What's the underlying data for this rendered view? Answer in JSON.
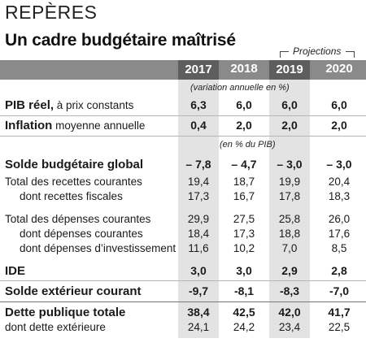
{
  "kicker": "REPÈRES",
  "title": "Un cadre budgétaire maîtrisé",
  "projections_label": "Projections",
  "years": [
    "2017",
    "2018",
    "2019",
    "2020"
  ],
  "unit_notes": {
    "variation": "(variation annuelle en %)",
    "pib_pct": "(en % du PIB)"
  },
  "rows": {
    "pib_reel": {
      "label_bold": "PIB réel,",
      "label_rest": " à prix constants",
      "values": [
        "6,3",
        "6,0",
        "6,0",
        "6,0"
      ]
    },
    "inflation": {
      "label_bold": "Inflation",
      "label_rest": " moyenne annuelle",
      "values": [
        "0,4",
        "2,0",
        "2,0",
        "2,0"
      ]
    },
    "solde_budgetaire": {
      "label_bold": "Solde budgétaire global",
      "label_rest": "",
      "values": [
        "– 7,8",
        "– 4,7",
        "– 3,0",
        "– 3,0"
      ]
    },
    "recettes": {
      "label": "Total des recettes courantes",
      "values": [
        "19,4",
        "18,7",
        "19,9",
        "20,4"
      ]
    },
    "recettes_fiscales": {
      "label": "dont recettes fiscales",
      "values": [
        "17,3",
        "16,7",
        "17,8",
        "18,3"
      ]
    },
    "depenses": {
      "label": "Total des dépenses courantes",
      "values": [
        "29,9",
        "27,5",
        "25,8",
        "26,0"
      ]
    },
    "depenses_courantes": {
      "label": "dont dépenses courantes",
      "values": [
        "18,4",
        "17,3",
        "18,8",
        "17,6"
      ]
    },
    "depenses_invest": {
      "label": "dont dépenses d’investissement",
      "values": [
        "11,6",
        "10,2",
        "7,0",
        "8,5"
      ]
    },
    "ide": {
      "label_bold": "IDE",
      "label_rest": "",
      "values": [
        "3,0",
        "3,0",
        "2,9",
        "2,8"
      ]
    },
    "solde_exterieur": {
      "label_bold": "Solde extérieur courant",
      "label_rest": "",
      "values": [
        "-9,7",
        "-8,1",
        "-8,3",
        "-7,0"
      ]
    },
    "dette": {
      "label_bold": "Dette publique totale",
      "label_rest": "",
      "values": [
        "38,4",
        "42,5",
        "42,0",
        "41,7"
      ]
    },
    "dette_ext": {
      "label": "dont dette extérieure",
      "values": [
        "24,1",
        "24,2",
        "23,4",
        "22,5"
      ]
    }
  }
}
